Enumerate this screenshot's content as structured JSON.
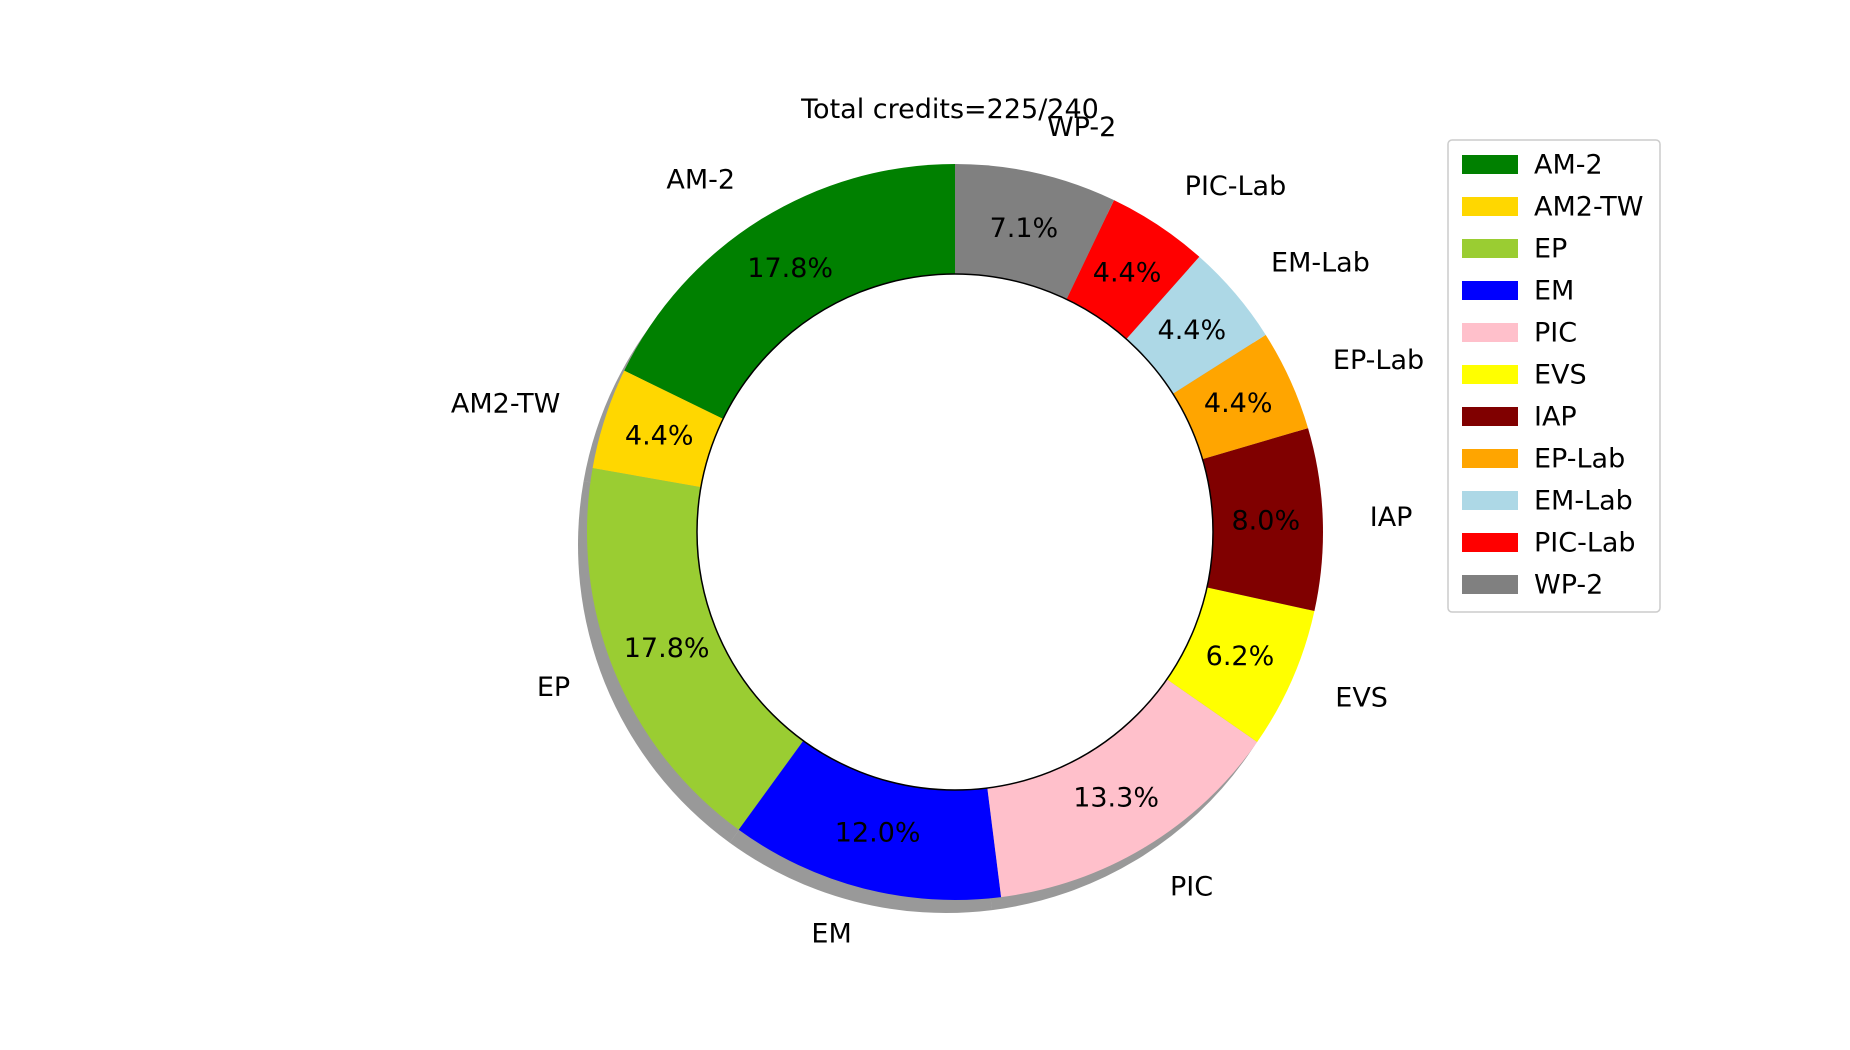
{
  "chart_data": {
    "type": "pie",
    "variant": "donut",
    "title": "Total credits=225/240",
    "categories": [
      "AM-2",
      "AM2-TW",
      "EP",
      "EM",
      "PIC",
      "EVS",
      "IAP",
      "EP-Lab",
      "EM-Lab",
      "PIC-Lab",
      "WP-2"
    ],
    "values": [
      40,
      10,
      40,
      27,
      30,
      14,
      18,
      10,
      10,
      10,
      16
    ],
    "percent_labels": [
      "17.8%",
      "4.4%",
      "17.8%",
      "12.0%",
      "13.3%",
      "6.2%",
      "8.0%",
      "4.4%",
      "4.4%",
      "4.4%",
      "7.1%"
    ],
    "colors": [
      "#008000",
      "#ffd700",
      "#9acd32",
      "#0000ff",
      "#ffc0cb",
      "#ffff00",
      "#800000",
      "#ffa500",
      "#add8e6",
      "#ff0000",
      "#808080"
    ],
    "start_angle_deg": 90,
    "direction": "counterclockwise",
    "shadow": true,
    "legend": {
      "position": "right",
      "entries": [
        "AM-2",
        "AM2-TW",
        "EP",
        "EM",
        "PIC",
        "EVS",
        "IAP",
        "EP-Lab",
        "EM-Lab",
        "PIC-Lab",
        "WP-2"
      ]
    }
  }
}
